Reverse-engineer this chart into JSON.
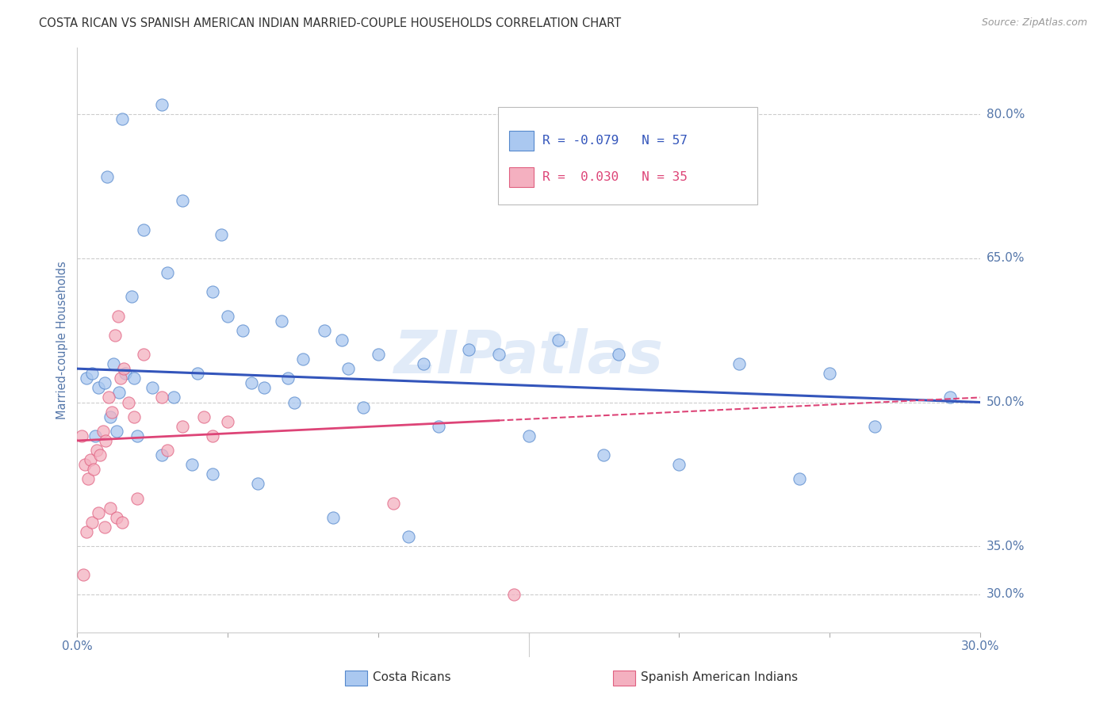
{
  "title": "COSTA RICAN VS SPANISH AMERICAN INDIAN MARRIED-COUPLE HOUSEHOLDS CORRELATION CHART",
  "source": "Source: ZipAtlas.com",
  "ylabel": "Married-couple Households",
  "right_yticks": [
    80.0,
    65.0,
    50.0,
    35.0
  ],
  "right_ytick_bottom": 30.0,
  "xmin": 0.0,
  "xmax": 30.0,
  "ymin": 26.0,
  "ymax": 87.0,
  "watermark": "ZIPatlas",
  "legend_blue_R": "-0.079",
  "legend_blue_N": "57",
  "legend_pink_R": "0.030",
  "legend_pink_N": "35",
  "blue_fill": "#aac8f0",
  "pink_fill": "#f4b0c0",
  "blue_edge": "#5588cc",
  "pink_edge": "#e06080",
  "blue_line_color": "#3355bb",
  "pink_line_color": "#dd4477",
  "blue_scatter_x": [
    1.5,
    2.8,
    1.0,
    2.2,
    3.5,
    4.8,
    1.8,
    3.0,
    5.5,
    6.8,
    4.5,
    5.0,
    7.5,
    8.2,
    9.0,
    10.0,
    11.5,
    13.0,
    7.0,
    8.8,
    14.0,
    16.0,
    18.0,
    22.0,
    25.0,
    29.0,
    0.3,
    0.5,
    0.7,
    0.9,
    1.2,
    1.4,
    1.6,
    1.9,
    2.5,
    3.2,
    4.0,
    5.8,
    6.2,
    7.2,
    9.5,
    12.0,
    15.0,
    17.5,
    20.0,
    24.0,
    26.5,
    0.6,
    1.1,
    1.3,
    2.0,
    2.8,
    3.8,
    4.5,
    6.0,
    8.5,
    11.0
  ],
  "blue_scatter_y": [
    79.5,
    81.0,
    73.5,
    68.0,
    71.0,
    67.5,
    61.0,
    63.5,
    57.5,
    58.5,
    61.5,
    59.0,
    54.5,
    57.5,
    53.5,
    55.0,
    54.0,
    55.5,
    52.5,
    56.5,
    55.0,
    56.5,
    55.0,
    54.0,
    53.0,
    50.5,
    52.5,
    53.0,
    51.5,
    52.0,
    54.0,
    51.0,
    53.0,
    52.5,
    51.5,
    50.5,
    53.0,
    52.0,
    51.5,
    50.0,
    49.5,
    47.5,
    46.5,
    44.5,
    43.5,
    42.0,
    47.5,
    46.5,
    48.5,
    47.0,
    46.5,
    44.5,
    43.5,
    42.5,
    41.5,
    38.0,
    36.0
  ],
  "pink_scatter_x": [
    0.15,
    0.25,
    0.35,
    0.45,
    0.55,
    0.65,
    0.75,
    0.85,
    0.95,
    1.05,
    1.15,
    1.25,
    1.35,
    1.45,
    1.55,
    1.7,
    1.9,
    2.2,
    2.8,
    3.5,
    4.2,
    5.0,
    0.3,
    0.5,
    0.7,
    0.9,
    1.1,
    1.3,
    1.5,
    2.0,
    3.0,
    4.5,
    10.5,
    14.5,
    0.2
  ],
  "pink_scatter_y": [
    46.5,
    43.5,
    42.0,
    44.0,
    43.0,
    45.0,
    44.5,
    47.0,
    46.0,
    50.5,
    49.0,
    57.0,
    59.0,
    52.5,
    53.5,
    50.0,
    48.5,
    55.0,
    50.5,
    47.5,
    48.5,
    48.0,
    36.5,
    37.5,
    38.5,
    37.0,
    39.0,
    38.0,
    37.5,
    40.0,
    45.0,
    46.5,
    39.5,
    30.0,
    32.0
  ],
  "blue_trend_x0": 0.0,
  "blue_trend_x1": 30.0,
  "blue_trend_y0": 53.5,
  "blue_trend_y1": 50.0,
  "pink_trend_x0": 0.0,
  "pink_trend_x1": 30.0,
  "pink_trend_y0": 46.0,
  "pink_trend_y1": 50.5,
  "pink_solid_end_x": 14.0,
  "dashed_gridline_color": "#cccccc",
  "title_fontsize": 10.5,
  "axis_color": "#5577aa",
  "dot_size": 120
}
